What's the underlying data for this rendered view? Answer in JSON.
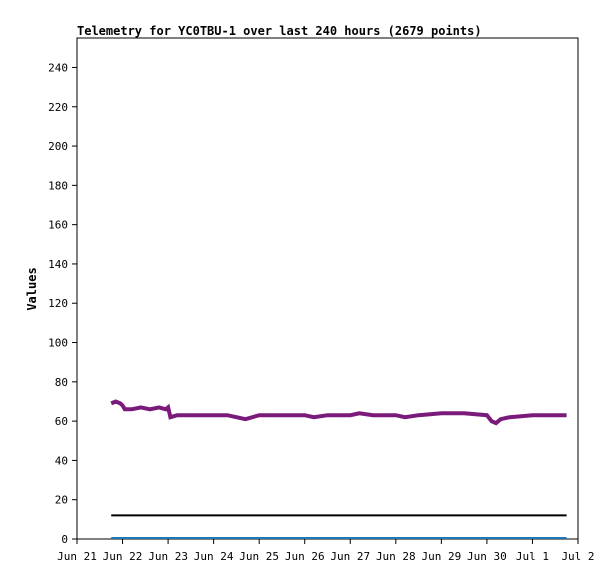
{
  "chart_data": {
    "type": "line",
    "title": "Telemetry for YC0TBU-1 over last 240 hours (2679 points)",
    "xlabel": "",
    "ylabel": "Values",
    "ylim": [
      0,
      255
    ],
    "xlim": [
      0,
      11
    ],
    "yticks": [
      0,
      20,
      40,
      60,
      80,
      100,
      120,
      140,
      160,
      180,
      200,
      220,
      240
    ],
    "xticks": [
      {
        "x": 0,
        "label": "Jun 21"
      },
      {
        "x": 1,
        "label": "Jun 22"
      },
      {
        "x": 2,
        "label": "Jun 23"
      },
      {
        "x": 3,
        "label": "Jun 24"
      },
      {
        "x": 4,
        "label": "Jun 25"
      },
      {
        "x": 5,
        "label": "Jun 26"
      },
      {
        "x": 6,
        "label": "Jun 27"
      },
      {
        "x": 7,
        "label": "Jun 28"
      },
      {
        "x": 8,
        "label": "Jun 29"
      },
      {
        "x": 9,
        "label": "Jun 30"
      },
      {
        "x": 10,
        "label": "Jul 1"
      },
      {
        "x": 11,
        "label": "Jul 2"
      }
    ],
    "grid": false,
    "series": [
      {
        "color": "#7a1a7a",
        "x": [
          0.75,
          0.85,
          0.95,
          1.0,
          1.05,
          1.2,
          1.4,
          1.6,
          1.8,
          1.95,
          2.0,
          2.05,
          2.2,
          2.5,
          3.0,
          3.3,
          3.5,
          3.7,
          4.0,
          4.5,
          5.0,
          5.2,
          5.5,
          6.0,
          6.2,
          6.5,
          7.0,
          7.2,
          7.5,
          8.0,
          8.5,
          9.0,
          9.1,
          9.2,
          9.3,
          9.5,
          10.0,
          10.5,
          10.75
        ],
        "y": [
          69,
          70,
          69,
          68,
          66,
          66,
          67,
          66,
          67,
          66,
          67,
          62,
          63,
          63,
          63,
          63,
          62,
          61,
          63,
          63,
          63,
          62,
          63,
          63,
          64,
          63,
          63,
          62,
          63,
          64,
          64,
          63,
          60,
          59,
          61,
          62,
          63,
          63,
          63
        ]
      },
      {
        "color": "#000000",
        "x": [
          0.75,
          10.75
        ],
        "y": [
          12,
          12
        ]
      },
      {
        "color": "#1f77b4",
        "x": [
          0.75,
          10.75
        ],
        "y": [
          0.5,
          0.5
        ]
      }
    ]
  }
}
